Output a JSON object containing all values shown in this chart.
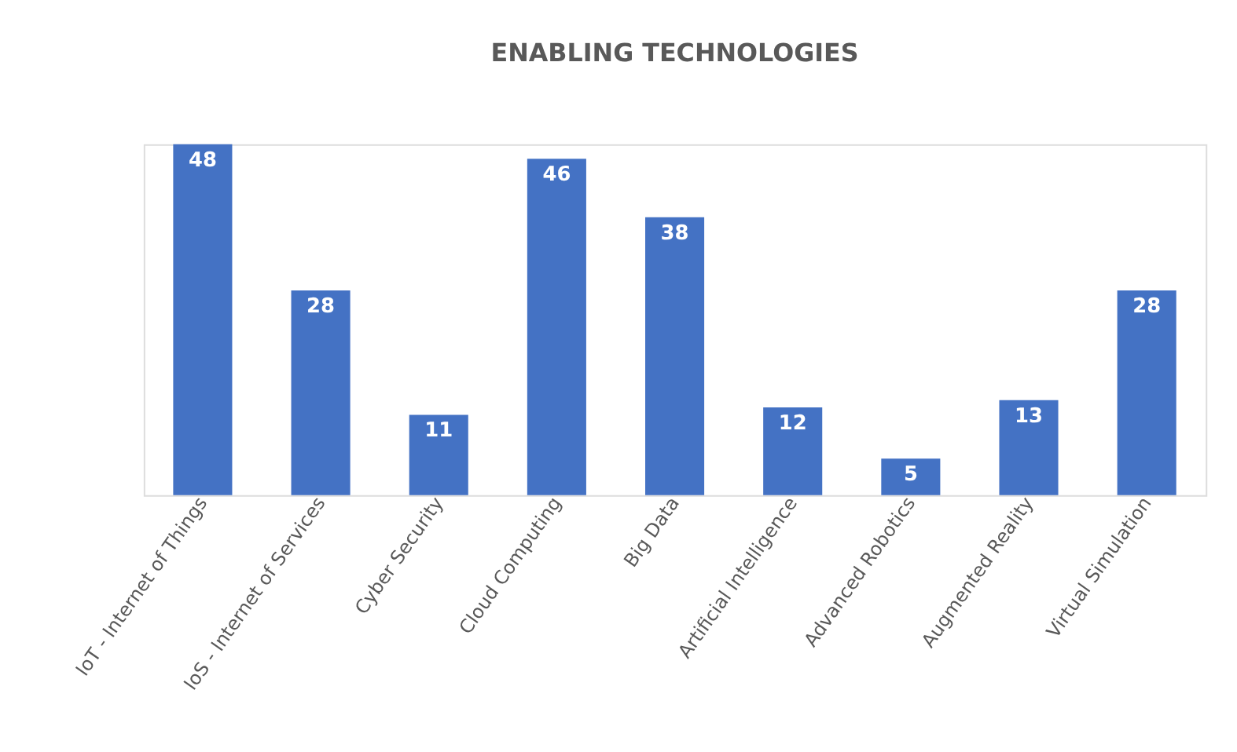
{
  "chart_data": {
    "type": "bar",
    "title": "ENABLING TECHNOLOGIES",
    "categories": [
      "IoT - Internet of Things",
      "IoS - Internet of Services",
      "Cyber Security",
      "Cloud Computing",
      "Big Data",
      "Artificial Intelligence",
      "Advanced Robotics",
      "Augmented Reality",
      "Virtual Simulation"
    ],
    "values": [
      48,
      28,
      11,
      46,
      38,
      12,
      5,
      13,
      28
    ],
    "color": "#4472c4",
    "data_labels": true,
    "grid": false
  }
}
